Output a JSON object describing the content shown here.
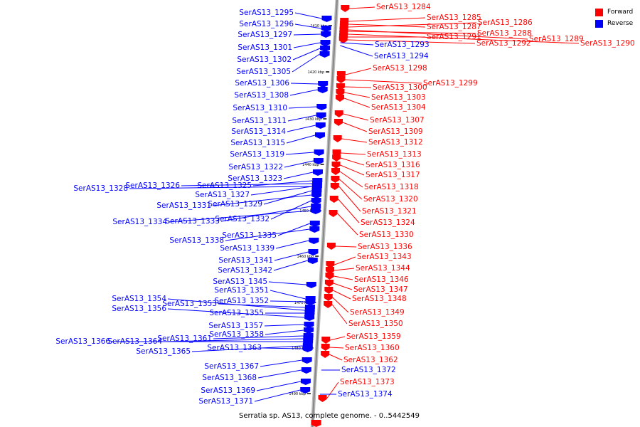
{
  "caption": "Serratia sp. AS13, complete genome. - 0..5442549",
  "legend": [
    {
      "label": "Forward",
      "color": "#ff0000"
    },
    {
      "label": "Reverse",
      "color": "#0000ff"
    }
  ],
  "colors": {
    "forward": "#ff0000",
    "reverse": "#0000ff",
    "backbone": "#888888"
  },
  "ticks": [
    "1410 kbp",
    "1420 kbp",
    "1430 kbp",
    "1440 kbp",
    "1450 kbp",
    "1460 kbp",
    "1470 kbp",
    "1480 kbp",
    "1490 kbp"
  ],
  "forward_genes": [
    "SerAS13_1284",
    "SerAS13_1285",
    "SerAS13_1286",
    "SerAS13_1287",
    "SerAS13_1288",
    "SerAS13_1289",
    "SerAS13_1290",
    "SerAS13_1291",
    "SerAS13_1292",
    "SerAS13_1298",
    "SerAS13_1299",
    "SerAS13_1300",
    "SerAS13_1303",
    "SerAS13_1304",
    "SerAS13_1307",
    "SerAS13_1309",
    "SerAS13_1312",
    "SerAS13_1313",
    "SerAS13_1316",
    "SerAS13_1317",
    "SerAS13_1318",
    "SerAS13_1320",
    "SerAS13_1321",
    "SerAS13_1324",
    "SerAS13_1330",
    "SerAS13_1336",
    "SerAS13_1343",
    "SerAS13_1344",
    "SerAS13_1346",
    "SerAS13_1347",
    "SerAS13_1348",
    "SerAS13_1349",
    "SerAS13_1350",
    "SerAS13_1359",
    "SerAS13_1360",
    "SerAS13_1362",
    "SerAS13_1373"
  ],
  "reverse_genes": [
    "SerAS13_1293",
    "SerAS13_1294",
    "SerAS13_1295",
    "SerAS13_1296",
    "SerAS13_1297",
    "SerAS13_1301",
    "SerAS13_1302",
    "SerAS13_1305",
    "SerAS13_1306",
    "SerAS13_1308",
    "SerAS13_1310",
    "SerAS13_1311",
    "SerAS13_1314",
    "SerAS13_1315",
    "SerAS13_1319",
    "SerAS13_1322",
    "SerAS13_1323",
    "SerAS13_1325",
    "SerAS13_1326",
    "SerAS13_1327",
    "SerAS13_1328",
    "SerAS13_1329",
    "SerAS13_1331",
    "SerAS13_1332",
    "SerAS13_1333",
    "SerAS13_1334",
    "SerAS13_1335",
    "SerAS13_1338",
    "SerAS13_1339",
    "SerAS13_1341",
    "SerAS13_1342",
    "SerAS13_1345",
    "SerAS13_1351",
    "SerAS13_1352",
    "SerAS13_1353",
    "SerAS13_1354",
    "SerAS13_1355",
    "SerAS13_1356",
    "SerAS13_1357",
    "SerAS13_1358",
    "SerAS13_1361",
    "SerAS13_1363",
    "SerAS13_1364",
    "SerAS13_1365",
    "SerAS13_1366",
    "SerAS13_1367",
    "SerAS13_1368",
    "SerAS13_1369",
    "SerAS13_1371",
    "SerAS13_1372",
    "SerAS13_1374"
  ]
}
